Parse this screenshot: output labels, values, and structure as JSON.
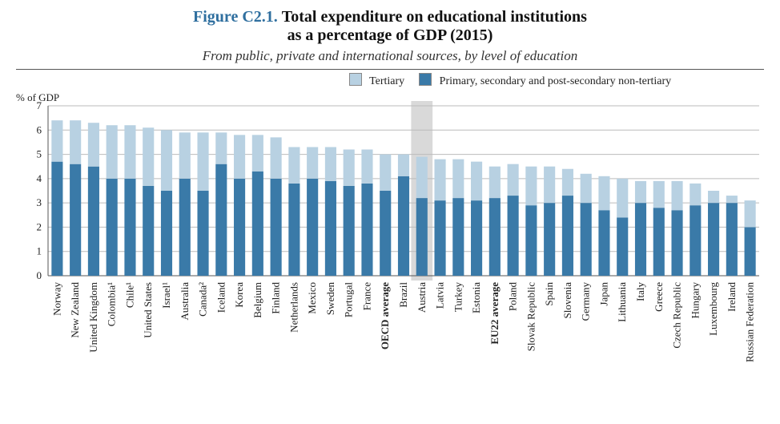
{
  "figure": {
    "number": "Figure C2.1.",
    "title_line1": "Total expenditure on educational institutions",
    "title_line2": "as a percentage of GDP (2015)",
    "subtitle": "From public, private and international sources, by level of education"
  },
  "legend": {
    "tertiary": "Tertiary",
    "primary": "Primary, secondary and post-secondary non-tertiary"
  },
  "ylabel": "% of GDP",
  "chart": {
    "type": "stacked-bar",
    "ylim": [
      0,
      7
    ],
    "ytick_step": 1,
    "bar_width": 0.62,
    "colors": {
      "tertiary": "#b8d1e2",
      "primary": "#3a7aa8",
      "grid": "#bbbbbb",
      "axis": "#555555",
      "background": "#ffffff",
      "highlight_band": "#d9d9d9"
    },
    "highlight_index": 20,
    "label_fontsize": 13,
    "tick_fontsize": 13,
    "countries": [
      {
        "name": "Norway",
        "primary": 4.7,
        "tertiary": 1.7,
        "bold": false
      },
      {
        "name": "New Zealand",
        "primary": 4.6,
        "tertiary": 1.8,
        "bold": false
      },
      {
        "name": "United Kingdom",
        "primary": 4.5,
        "tertiary": 1.8,
        "bold": false
      },
      {
        "name": "Colombia¹",
        "primary": 4.0,
        "tertiary": 2.2,
        "bold": false
      },
      {
        "name": "Chile¹",
        "primary": 4.0,
        "tertiary": 2.2,
        "bold": false
      },
      {
        "name": "United States",
        "primary": 3.7,
        "tertiary": 2.4,
        "bold": false
      },
      {
        "name": "Israel¹",
        "primary": 3.5,
        "tertiary": 2.5,
        "bold": false
      },
      {
        "name": "Australia",
        "primary": 4.0,
        "tertiary": 1.9,
        "bold": false
      },
      {
        "name": "Canada²",
        "primary": 3.5,
        "tertiary": 2.4,
        "bold": false
      },
      {
        "name": "Iceland",
        "primary": 4.6,
        "tertiary": 1.3,
        "bold": false
      },
      {
        "name": "Korea",
        "primary": 4.0,
        "tertiary": 1.8,
        "bold": false
      },
      {
        "name": "Belgium",
        "primary": 4.3,
        "tertiary": 1.5,
        "bold": false
      },
      {
        "name": "Finland",
        "primary": 4.0,
        "tertiary": 1.7,
        "bold": false
      },
      {
        "name": "Netherlands",
        "primary": 3.8,
        "tertiary": 1.5,
        "bold": false
      },
      {
        "name": "Mexico",
        "primary": 4.0,
        "tertiary": 1.3,
        "bold": false
      },
      {
        "name": "Sweden",
        "primary": 3.9,
        "tertiary": 1.4,
        "bold": false
      },
      {
        "name": "Portugal",
        "primary": 3.7,
        "tertiary": 1.5,
        "bold": false
      },
      {
        "name": "France",
        "primary": 3.8,
        "tertiary": 1.4,
        "bold": false
      },
      {
        "name": "OECD average",
        "primary": 3.5,
        "tertiary": 1.5,
        "bold": true
      },
      {
        "name": "Brazil",
        "primary": 4.1,
        "tertiary": 0.9,
        "bold": false
      },
      {
        "name": "Austria",
        "primary": 3.2,
        "tertiary": 1.7,
        "bold": false
      },
      {
        "name": "Latvia",
        "primary": 3.1,
        "tertiary": 1.7,
        "bold": false
      },
      {
        "name": "Turkey",
        "primary": 3.2,
        "tertiary": 1.6,
        "bold": false
      },
      {
        "name": "Estonia",
        "primary": 3.1,
        "tertiary": 1.6,
        "bold": false
      },
      {
        "name": "EU22 average",
        "primary": 3.2,
        "tertiary": 1.3,
        "bold": true
      },
      {
        "name": "Poland",
        "primary": 3.3,
        "tertiary": 1.3,
        "bold": false
      },
      {
        "name": "Slovak Republic",
        "primary": 2.9,
        "tertiary": 1.6,
        "bold": false
      },
      {
        "name": "Spain",
        "primary": 3.0,
        "tertiary": 1.5,
        "bold": false
      },
      {
        "name": "Slovenia",
        "primary": 3.3,
        "tertiary": 1.1,
        "bold": false
      },
      {
        "name": "Germany",
        "primary": 3.0,
        "tertiary": 1.2,
        "bold": false
      },
      {
        "name": "Japan",
        "primary": 2.7,
        "tertiary": 1.4,
        "bold": false
      },
      {
        "name": "Lithuania",
        "primary": 2.4,
        "tertiary": 1.6,
        "bold": false
      },
      {
        "name": "Italy",
        "primary": 3.0,
        "tertiary": 0.9,
        "bold": false
      },
      {
        "name": "Greece",
        "primary": 2.8,
        "tertiary": 1.1,
        "bold": false
      },
      {
        "name": "Czech Republic",
        "primary": 2.7,
        "tertiary": 1.2,
        "bold": false
      },
      {
        "name": "Hungary",
        "primary": 2.9,
        "tertiary": 0.9,
        "bold": false
      },
      {
        "name": "Luxembourg",
        "primary": 3.0,
        "tertiary": 0.5,
        "bold": false
      },
      {
        "name": "Ireland",
        "primary": 3.0,
        "tertiary": 0.3,
        "bold": false
      },
      {
        "name": "Russian Federation",
        "primary": 2.0,
        "tertiary": 1.1,
        "bold": false
      }
    ]
  }
}
